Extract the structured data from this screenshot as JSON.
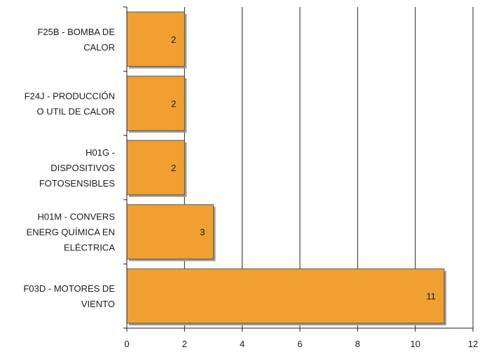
{
  "chart_data": {
    "type": "bar",
    "orientation": "horizontal",
    "categories": [
      [
        "F25B - BOMBA DE",
        "CALOR"
      ],
      [
        "F24J - PRODUCCIÓN",
        "O UTIL DE CALOR"
      ],
      [
        "H01G -",
        "DISPOSITIVOS",
        "FOTOSENSIBLES"
      ],
      [
        "H01M - CONVERS",
        "ENERG QUÍMICA EN",
        "ELÉCTRICA"
      ],
      [
        "F03D - MOTORES DE",
        "VIENTO"
      ]
    ],
    "values": [
      2,
      2,
      2,
      3,
      11
    ],
    "data_labels": [
      "2",
      "2",
      "2",
      "3",
      "11"
    ],
    "xlim": [
      0,
      12
    ],
    "xticks": [
      0,
      2,
      4,
      6,
      8,
      10,
      12
    ],
    "title": "",
    "xlabel": "",
    "ylabel": "",
    "grid": "vertical",
    "colors": {
      "bar": "#f0a030",
      "bar_border": "#5a5a5a",
      "shadow": "#9a9a9a",
      "grid": "#222222"
    }
  }
}
